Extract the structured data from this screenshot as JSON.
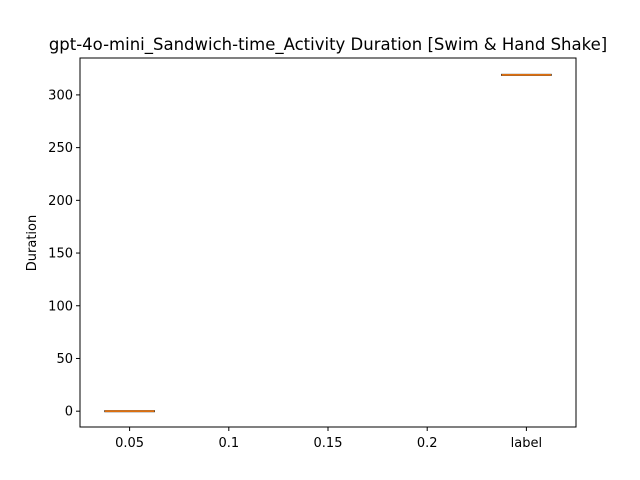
{
  "chart_data": {
    "type": "box",
    "title": "gpt-4o-mini_Sandwich-time_Activity Duration [Swim & Hand Shake]",
    "xlabel": "",
    "ylabel": "Duration",
    "categories": [
      "0.05",
      "0.1",
      "0.15",
      "0.2",
      "label"
    ],
    "ylim": [
      -15,
      335
    ],
    "yticks": [
      0,
      50,
      100,
      150,
      200,
      250,
      300
    ],
    "grid": false,
    "boxes": [
      {
        "category": "0.05",
        "min": 0,
        "q1": 0,
        "median": 0,
        "q3": 0,
        "max": 0
      },
      {
        "category": "label",
        "min": 319,
        "q1": 319,
        "median": 319,
        "q3": 319,
        "max": 319
      }
    ],
    "colors": {
      "box": "#000000",
      "median": "#ff7f0e"
    }
  }
}
